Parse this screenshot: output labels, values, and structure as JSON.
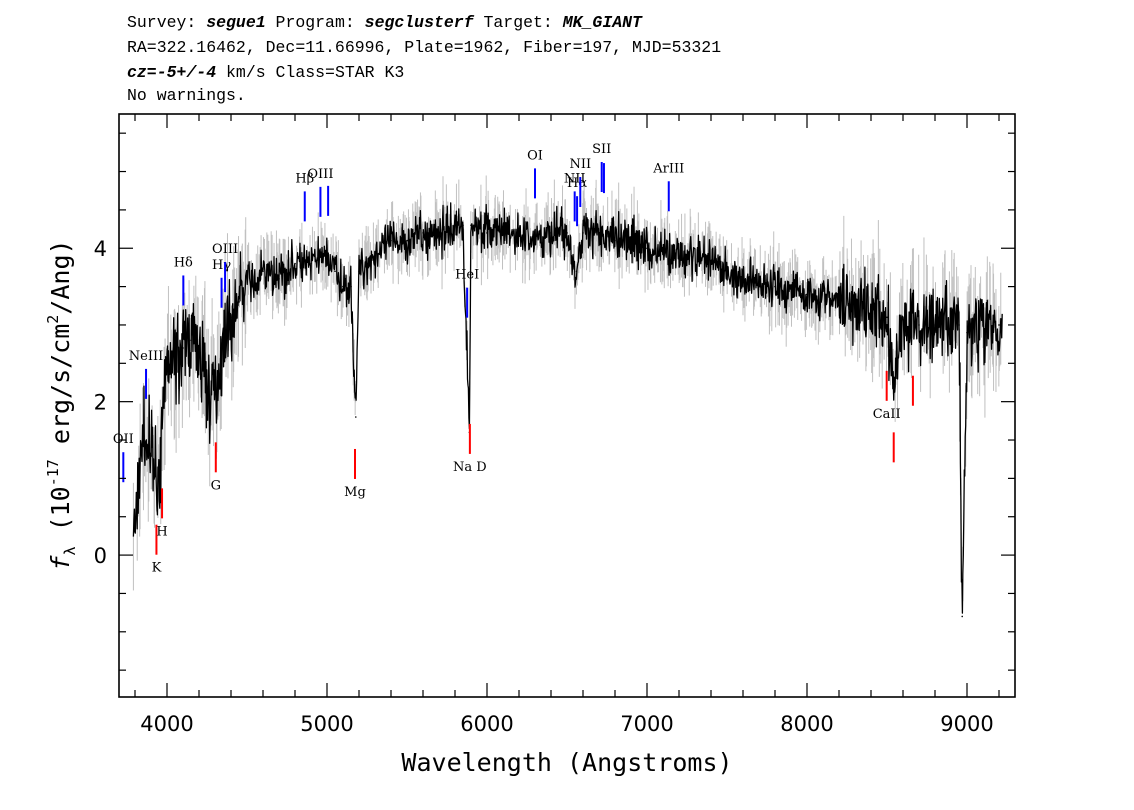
{
  "header": {
    "line1": {
      "survey_label": "Survey: ",
      "survey": "segue1",
      "program_label": " Program: ",
      "program": "segclusterf",
      "target_label": " Target: ",
      "target": "MK_GIANT"
    },
    "line2": "RA=322.16462, Dec=11.66996, Plate=1962, Fiber=197, MJD=53321",
    "line3": {
      "cz": "cz=-5+/-4",
      "rest": " km/s Class=STAR K3"
    },
    "line4": "No warnings."
  },
  "colors": {
    "flux": "#000000",
    "error": "#c0c0c0",
    "emission": "#0000ff",
    "absorption": "#ff0000",
    "frame": "#000000"
  },
  "chart_data": {
    "type": "line",
    "xlabel": "Wavelength (Angstroms)",
    "ylabel": "f_λ (10^-17 erg/s/cm²/Ang)",
    "xlim": [
      3700,
      9300
    ],
    "ylim": [
      -1.85,
      5.75
    ],
    "xticks": [
      4000,
      5000,
      6000,
      7000,
      8000,
      9000
    ],
    "yticks": [
      0,
      2,
      4
    ],
    "grid": false,
    "series": [
      {
        "x": [
          3800,
          3850,
          3900,
          3950,
          4000,
          4050,
          4100,
          4150,
          4200,
          4250,
          4300,
          4350,
          4400,
          4450,
          4500,
          4550,
          4600,
          4700,
          4800,
          4900,
          5000,
          5050,
          5100,
          5150,
          5180,
          5200,
          5250,
          5300,
          5400,
          5500,
          5600,
          5700,
          5800,
          5850,
          5890,
          5900,
          5950,
          6000,
          6100,
          6200,
          6300,
          6400,
          6500,
          6560,
          6600,
          6700,
          6800,
          6900,
          7000,
          7200,
          7400,
          7600,
          7800,
          8000,
          8200,
          8400,
          8500,
          8542,
          8600,
          8700,
          8800,
          8900,
          8950,
          8970,
          9000,
          9100,
          9200
        ],
        "values": [
          0.4,
          1.6,
          1.3,
          1.0,
          2.5,
          2.6,
          2.7,
          2.8,
          2.6,
          2.2,
          2.1,
          2.8,
          3.1,
          3.3,
          3.6,
          3.5,
          3.7,
          3.6,
          3.8,
          3.8,
          3.9,
          3.7,
          3.5,
          3.5,
          1.8,
          3.7,
          3.8,
          3.9,
          4.1,
          4.1,
          4.2,
          4.2,
          4.3,
          4.3,
          1.6,
          4.3,
          4.3,
          4.2,
          4.2,
          4.2,
          4.1,
          4.2,
          4.2,
          3.7,
          4.2,
          4.2,
          4.1,
          4.1,
          4.0,
          3.9,
          3.8,
          3.6,
          3.5,
          3.4,
          3.3,
          3.2,
          3.1,
          2.3,
          3.1,
          3.0,
          3.0,
          3.0,
          3.0,
          -0.8,
          2.9,
          3.0,
          3.0
        ]
      }
    ],
    "lines": [
      {
        "name": "OII",
        "wave": 3727,
        "kind": "emission",
        "label": "OII"
      },
      {
        "name": "NeIII",
        "wave": 3869,
        "kind": "emission",
        "label": "NeIII"
      },
      {
        "name": "K",
        "wave": 3934,
        "kind": "absorption",
        "label": "K"
      },
      {
        "name": "H",
        "wave": 3969,
        "kind": "absorption",
        "label": "H"
      },
      {
        "name": "Hdelta",
        "wave": 4102,
        "kind": "emission",
        "label": "Hδ"
      },
      {
        "name": "G",
        "wave": 4305,
        "kind": "absorption",
        "label": "G"
      },
      {
        "name": "Hgamma",
        "wave": 4341,
        "kind": "emission",
        "label": "Hγ"
      },
      {
        "name": "OIII-4363",
        "wave": 4363,
        "kind": "emission",
        "label": "OIII"
      },
      {
        "name": "Hbeta",
        "wave": 4861,
        "kind": "emission",
        "label": "Hβ"
      },
      {
        "name": "OIII-4959",
        "wave": 4959,
        "kind": "emission",
        "label": "OIII"
      },
      {
        "name": "OIII-5007",
        "wave": 5007,
        "kind": "emission",
        "label": ""
      },
      {
        "name": "Mg",
        "wave": 5175,
        "kind": "absorption",
        "label": "Mg"
      },
      {
        "name": "HeI",
        "wave": 5876,
        "kind": "emission",
        "label": "HeI"
      },
      {
        "name": "NaD",
        "wave": 5893,
        "kind": "absorption",
        "label": "Na D"
      },
      {
        "name": "OI",
        "wave": 6300,
        "kind": "emission",
        "label": "OI"
      },
      {
        "name": "NII-6548",
        "wave": 6548,
        "kind": "emission",
        "label": "NII"
      },
      {
        "name": "Halpha",
        "wave": 6563,
        "kind": "emission",
        "label": "Hα"
      },
      {
        "name": "NII-6583",
        "wave": 6583,
        "kind": "emission",
        "label": "NII"
      },
      {
        "name": "SII-6717",
        "wave": 6717,
        "kind": "emission",
        "label": "SII"
      },
      {
        "name": "SII-6731",
        "wave": 6731,
        "kind": "emission",
        "label": ""
      },
      {
        "name": "ArIII",
        "wave": 7136,
        "kind": "emission",
        "label": "ArIII"
      },
      {
        "name": "CaII-8498",
        "wave": 8498,
        "kind": "absorption",
        "label": "CaII"
      },
      {
        "name": "CaII-8542",
        "wave": 8542,
        "kind": "absorption",
        "label": ""
      },
      {
        "name": "CaII-8662",
        "wave": 8662,
        "kind": "absorption",
        "label": ""
      }
    ]
  }
}
